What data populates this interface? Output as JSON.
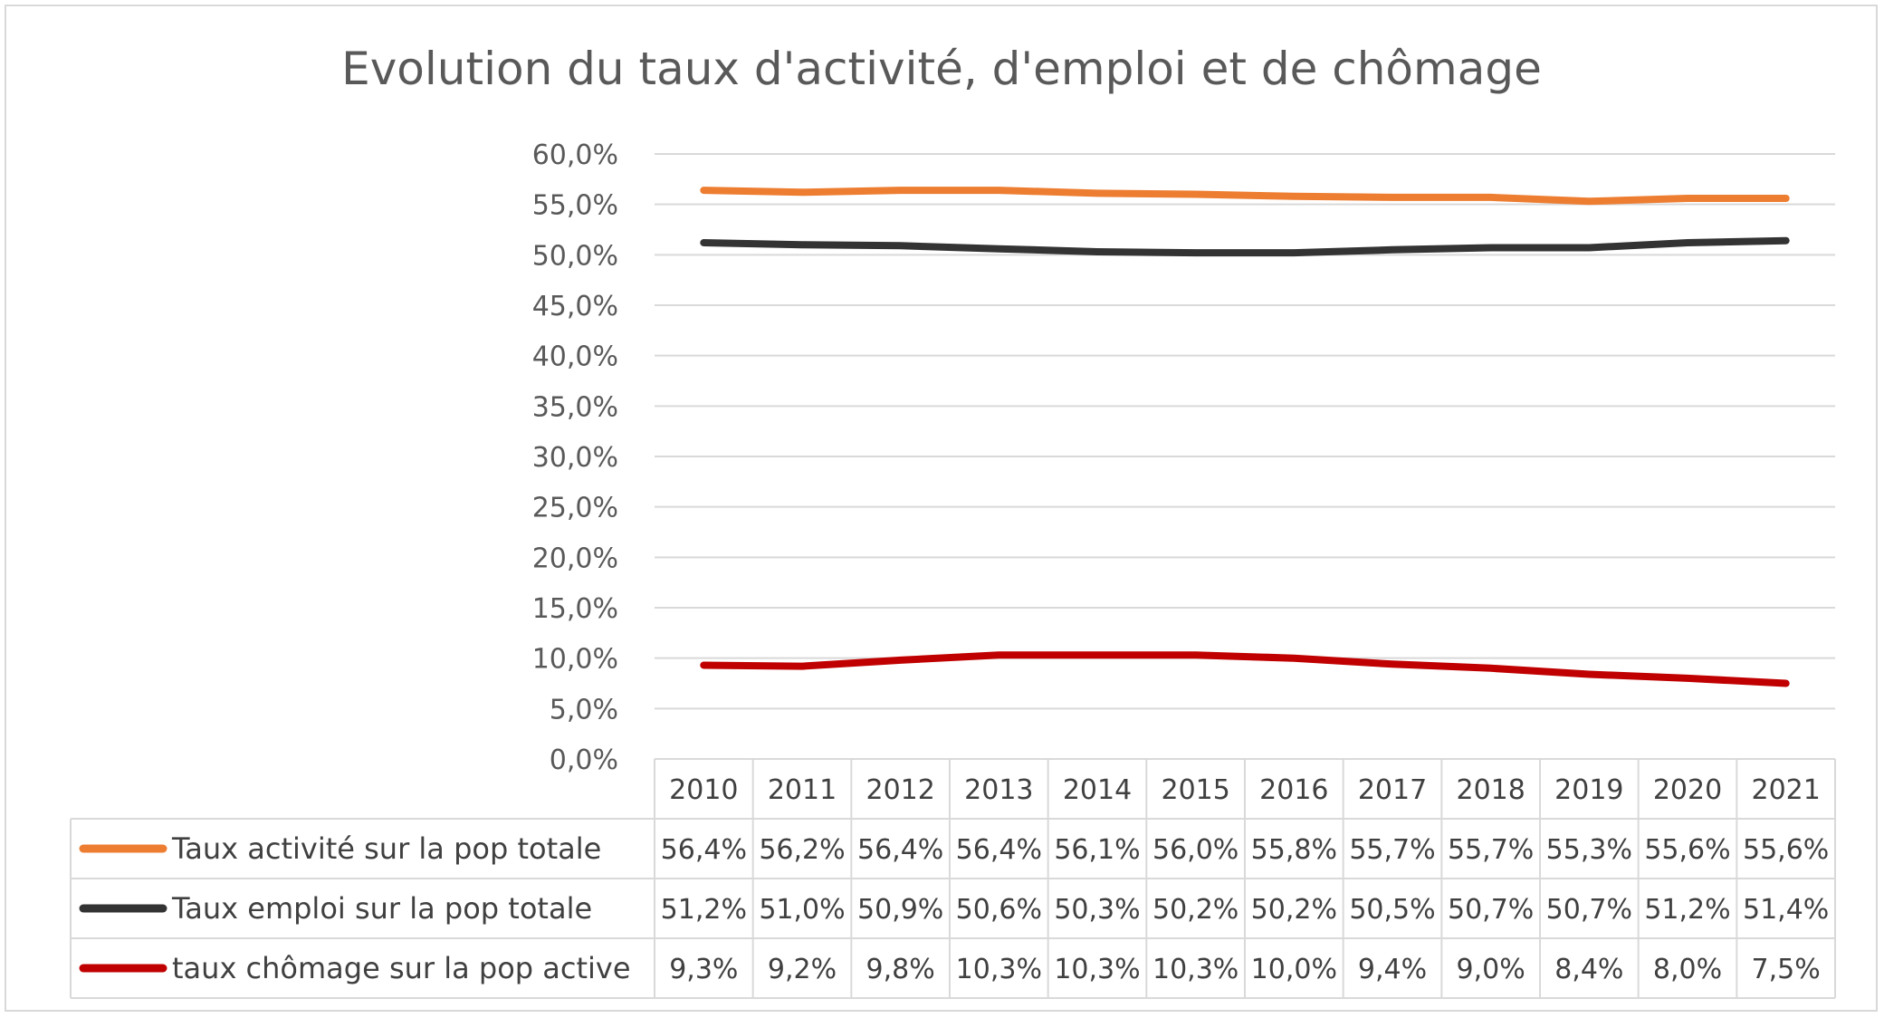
{
  "chart_data": {
    "type": "line",
    "title": "Evolution du taux d'activité, d'emploi et de chômage",
    "categories": [
      "2010",
      "2011",
      "2012",
      "2013",
      "2014",
      "2015",
      "2016",
      "2017",
      "2018",
      "2019",
      "2020",
      "2021"
    ],
    "ylim": [
      0,
      60
    ],
    "yticks": [
      "0,0%",
      "5,0%",
      "10,0%",
      "15,0%",
      "20,0%",
      "25,0%",
      "30,0%",
      "35,0%",
      "40,0%",
      "45,0%",
      "50,0%",
      "55,0%",
      "60,0%"
    ],
    "grid": true,
    "legend": "data-table",
    "series": [
      {
        "name": "Taux activité sur la pop totale",
        "color": "#ed7d31",
        "values": [
          56.4,
          56.2,
          56.4,
          56.4,
          56.1,
          56.0,
          55.8,
          55.7,
          55.7,
          55.3,
          55.6,
          55.6
        ],
        "labels": [
          "56,4%",
          "56,2%",
          "56,4%",
          "56,4%",
          "56,1%",
          "56,0%",
          "55,8%",
          "55,7%",
          "55,7%",
          "55,3%",
          "55,6%",
          "55,6%"
        ]
      },
      {
        "name": "Taux emploi sur la pop totale",
        "color": "#333333",
        "values": [
          51.2,
          51.0,
          50.9,
          50.6,
          50.3,
          50.2,
          50.2,
          50.5,
          50.7,
          50.7,
          51.2,
          51.4
        ],
        "labels": [
          "51,2%",
          "51,0%",
          "50,9%",
          "50,6%",
          "50,3%",
          "50,2%",
          "50,2%",
          "50,5%",
          "50,7%",
          "50,7%",
          "51,2%",
          "51,4%"
        ]
      },
      {
        "name": "taux chômage sur la pop active",
        "color": "#c00000",
        "values": [
          9.3,
          9.2,
          9.8,
          10.3,
          10.3,
          10.3,
          10.0,
          9.4,
          9.0,
          8.4,
          8.0,
          7.5
        ],
        "labels": [
          "9,3%",
          "9,2%",
          "9,8%",
          "10,3%",
          "10,3%",
          "10,3%",
          "10,0%",
          "9,4%",
          "9,0%",
          "8,4%",
          "8,0%",
          "7,5%"
        ]
      }
    ]
  }
}
